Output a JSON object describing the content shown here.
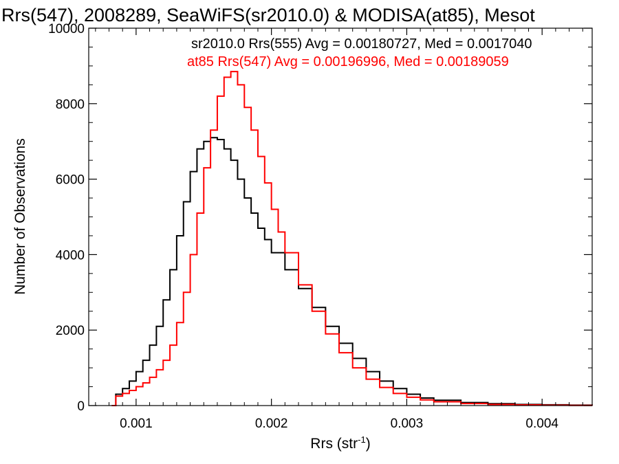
{
  "chart_data": {
    "type": "line",
    "title": "Rrs(547), 2008289, SeaWiFS(sr2010.0) & MODISA(at85), Mesot",
    "xlabel": "Rrs (str",
    "xlabel_sup": "-1",
    "xlabel_close": ")",
    "ylabel": "Number of Observations",
    "xlim": [
      0.00065,
      0.00437
    ],
    "ylim": [
      0,
      10000
    ],
    "x_ticks": [
      {
        "value": 0.001,
        "label": "0.001"
      },
      {
        "value": 0.002,
        "label": "0.002"
      },
      {
        "value": 0.003,
        "label": "0.003"
      },
      {
        "value": 0.004,
        "label": "0.004"
      }
    ],
    "y_ticks": [
      {
        "value": 0,
        "label": "0"
      },
      {
        "value": 2000,
        "label": "2000"
      },
      {
        "value": 4000,
        "label": "4000"
      },
      {
        "value": 6000,
        "label": "6000"
      },
      {
        "value": 8000,
        "label": "8000"
      },
      {
        "value": 10000,
        "label": "10000"
      }
    ],
    "grid": false,
    "series": [
      {
        "legend": "sr2010.0 Rrs(555) Avg = 0.00180727, Med = 0.0017040",
        "color": "#000000",
        "x": [
          0.00082,
          0.00085,
          0.0009,
          0.00095,
          0.001,
          0.00105,
          0.0011,
          0.00115,
          0.0012,
          0.00125,
          0.0013,
          0.00135,
          0.0014,
          0.00145,
          0.0015,
          0.00155,
          0.0016,
          0.00165,
          0.0017,
          0.00175,
          0.0018,
          0.00185,
          0.0019,
          0.00195,
          0.002,
          0.0021,
          0.0022,
          0.0023,
          0.0024,
          0.0025,
          0.0026,
          0.0027,
          0.0028,
          0.0029,
          0.003,
          0.0031,
          0.0032,
          0.0034,
          0.0036,
          0.0038,
          0.004,
          0.0042,
          0.00437
        ],
        "y": [
          0,
          300,
          450,
          650,
          900,
          1200,
          1600,
          2100,
          2800,
          3600,
          4500,
          5400,
          6200,
          6800,
          7000,
          7100,
          7050,
          6800,
          6500,
          6000,
          5500,
          5100,
          4700,
          4400,
          4050,
          3600,
          3100,
          2600,
          2100,
          1650,
          1250,
          900,
          650,
          450,
          300,
          200,
          140,
          80,
          50,
          30,
          20,
          12,
          5
        ]
      },
      {
        "legend": "at85 Rrs(547) Avg = 0.00196996, Med = 0.00189059",
        "color": "#ff0000",
        "x": [
          0.00082,
          0.00085,
          0.0009,
          0.00095,
          0.001,
          0.00105,
          0.0011,
          0.00115,
          0.0012,
          0.00125,
          0.0013,
          0.00135,
          0.0014,
          0.00145,
          0.0015,
          0.00155,
          0.0016,
          0.00165,
          0.0017,
          0.00175,
          0.0018,
          0.00185,
          0.0019,
          0.00195,
          0.002,
          0.00205,
          0.0021,
          0.0022,
          0.0023,
          0.0024,
          0.0025,
          0.0026,
          0.0027,
          0.0028,
          0.0029,
          0.003,
          0.0031,
          0.0032,
          0.0034,
          0.0036,
          0.0038,
          0.004,
          0.0042,
          0.00437
        ],
        "y": [
          0,
          250,
          320,
          400,
          500,
          600,
          750,
          950,
          1200,
          1600,
          2200,
          3000,
          4000,
          5100,
          6300,
          7300,
          8200,
          8700,
          8850,
          8500,
          7900,
          7300,
          6600,
          5900,
          5200,
          4600,
          4050,
          3200,
          2500,
          1900,
          1400,
          1000,
          700,
          480,
          320,
          220,
          150,
          100,
          55,
          30,
          18,
          10,
          5,
          3
        ]
      }
    ]
  }
}
